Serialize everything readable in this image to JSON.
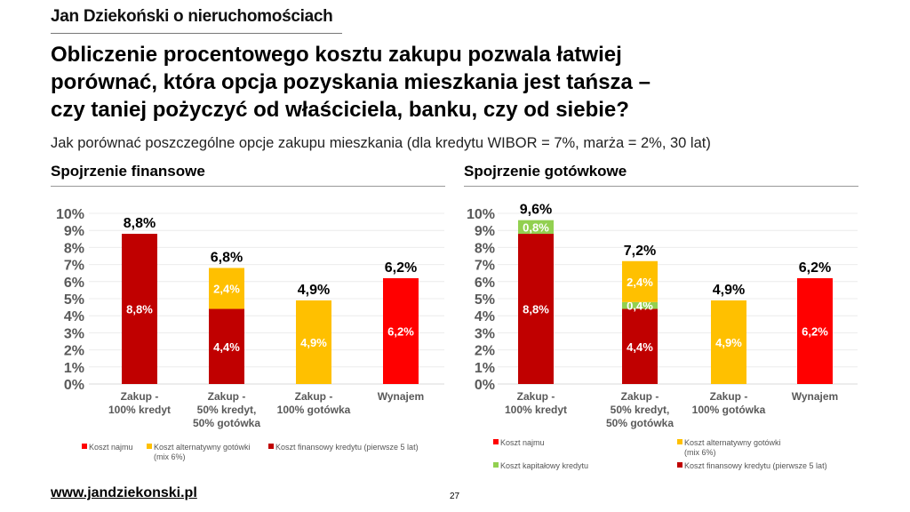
{
  "header": {
    "brand": "Jan Dziekoński o nieruchomościach",
    "title_lines": [
      "Obliczenie procentowego kosztu zakupu pozwala łatwiej",
      "porównać, która opcja pozyskania mieszkania jest tańsza –",
      "czy taniej pożyczyć od właściciela, banku, czy od siebie?"
    ],
    "subtitle": "Jak porównać poszczególne opcje zakupu mieszkania (dla kredytu WIBOR = 7%, marża = 2%, 30 lat)"
  },
  "footer": {
    "link": "www.jandziekonski.pl",
    "page_number": "27"
  },
  "colors": {
    "koszt_najmu": "#FF0000",
    "koszt_alternatywny": "#FFC000",
    "koszt_finansowy": "#C00000",
    "koszt_kapitalowy": "#92D050"
  },
  "chart_data": [
    {
      "type": "bar",
      "stacked": true,
      "title": "Spojrzenie finansowe",
      "categories": [
        [
          "Zakup -",
          "100% kredyt"
        ],
        [
          "Zakup -",
          "50% kredyt,",
          "50% gotówka"
        ],
        [
          "Zakup -",
          "100% gotówka"
        ],
        [
          "Wynajem"
        ]
      ],
      "ylim": [
        0,
        10
      ],
      "yticks": [
        "0%",
        "1%",
        "2%",
        "3%",
        "4%",
        "5%",
        "6%",
        "7%",
        "8%",
        "9%",
        "10%"
      ],
      "grid": true,
      "legend_position": "bottom",
      "series": [
        {
          "name": "Koszt finansowy kredytu (pierwsze 5 lat)",
          "color": "#C00000",
          "values": [
            8.8,
            4.4,
            0,
            0
          ],
          "labels": [
            "8,8%",
            "4,4%",
            "",
            ""
          ]
        },
        {
          "name": "Koszt alternatywny gotówki (mix 6%)",
          "color": "#FFC000",
          "values": [
            0,
            2.4,
            4.9,
            0
          ],
          "labels": [
            "",
            "2,4%",
            "4,9%",
            ""
          ]
        },
        {
          "name": "Koszt najmu",
          "color": "#FF0000",
          "values": [
            0,
            0,
            0,
            6.2
          ],
          "labels": [
            "",
            "",
            "",
            "6,2%"
          ]
        }
      ],
      "totals": [
        8.8,
        6.8,
        4.9,
        6.2
      ],
      "total_labels": [
        "8,8%",
        "6,8%",
        "4,9%",
        "6,2%"
      ],
      "legend": [
        {
          "name": "Koszt najmu",
          "color": "#FF0000"
        },
        {
          "name": "Koszt alternatywny gotówki",
          "name2": "(mix 6%)",
          "color": "#FFC000"
        },
        {
          "name": "Koszt finansowy kredytu (pierwsze 5 lat)",
          "color": "#C00000"
        }
      ]
    },
    {
      "type": "bar",
      "stacked": true,
      "title": "Spojrzenie gotówkowe",
      "categories": [
        [
          "Zakup -",
          "100% kredyt"
        ],
        [
          "Zakup -",
          "50% kredyt,",
          "50% gotówka"
        ],
        [
          "Zakup -",
          "100% gotówka"
        ],
        [
          "Wynajem"
        ]
      ],
      "ylim": [
        0,
        10
      ],
      "yticks": [
        "0%",
        "1%",
        "2%",
        "3%",
        "4%",
        "5%",
        "6%",
        "7%",
        "8%",
        "9%",
        "10%"
      ],
      "grid": true,
      "legend_position": "bottom",
      "series": [
        {
          "name": "Koszt finansowy kredytu (pierwsze 5 lat)",
          "color": "#C00000",
          "values": [
            8.8,
            4.4,
            0,
            0
          ],
          "labels": [
            "8,8%",
            "4,4%",
            "",
            ""
          ]
        },
        {
          "name": "Koszt kapitałowy kredytu",
          "color": "#92D050",
          "values": [
            0.8,
            0.4,
            0,
            0
          ],
          "labels": [
            "0,8%",
            "0,4%",
            "",
            ""
          ]
        },
        {
          "name": "Koszt alternatywny gotówki (mix 6%)",
          "color": "#FFC000",
          "values": [
            0,
            2.4,
            4.9,
            0
          ],
          "labels": [
            "",
            "2,4%",
            "4,9%",
            ""
          ]
        },
        {
          "name": "Koszt najmu",
          "color": "#FF0000",
          "values": [
            0,
            0,
            0,
            6.2
          ],
          "labels": [
            "",
            "",
            "",
            "6,2%"
          ]
        }
      ],
      "totals": [
        9.6,
        7.2,
        4.9,
        6.2
      ],
      "total_labels": [
        "9,6%",
        "7,2%",
        "4,9%",
        "6,2%"
      ],
      "legend": [
        {
          "name": "Koszt najmu",
          "color": "#FF0000"
        },
        {
          "name": "Koszt alternatywny gotówki",
          "name2": "(mix 6%)",
          "color": "#FFC000"
        },
        {
          "name": "Koszt kapitałowy kredytu",
          "color": "#92D050"
        },
        {
          "name": "Koszt finansowy kredytu (pierwsze 5 lat)",
          "color": "#C00000"
        }
      ]
    }
  ]
}
